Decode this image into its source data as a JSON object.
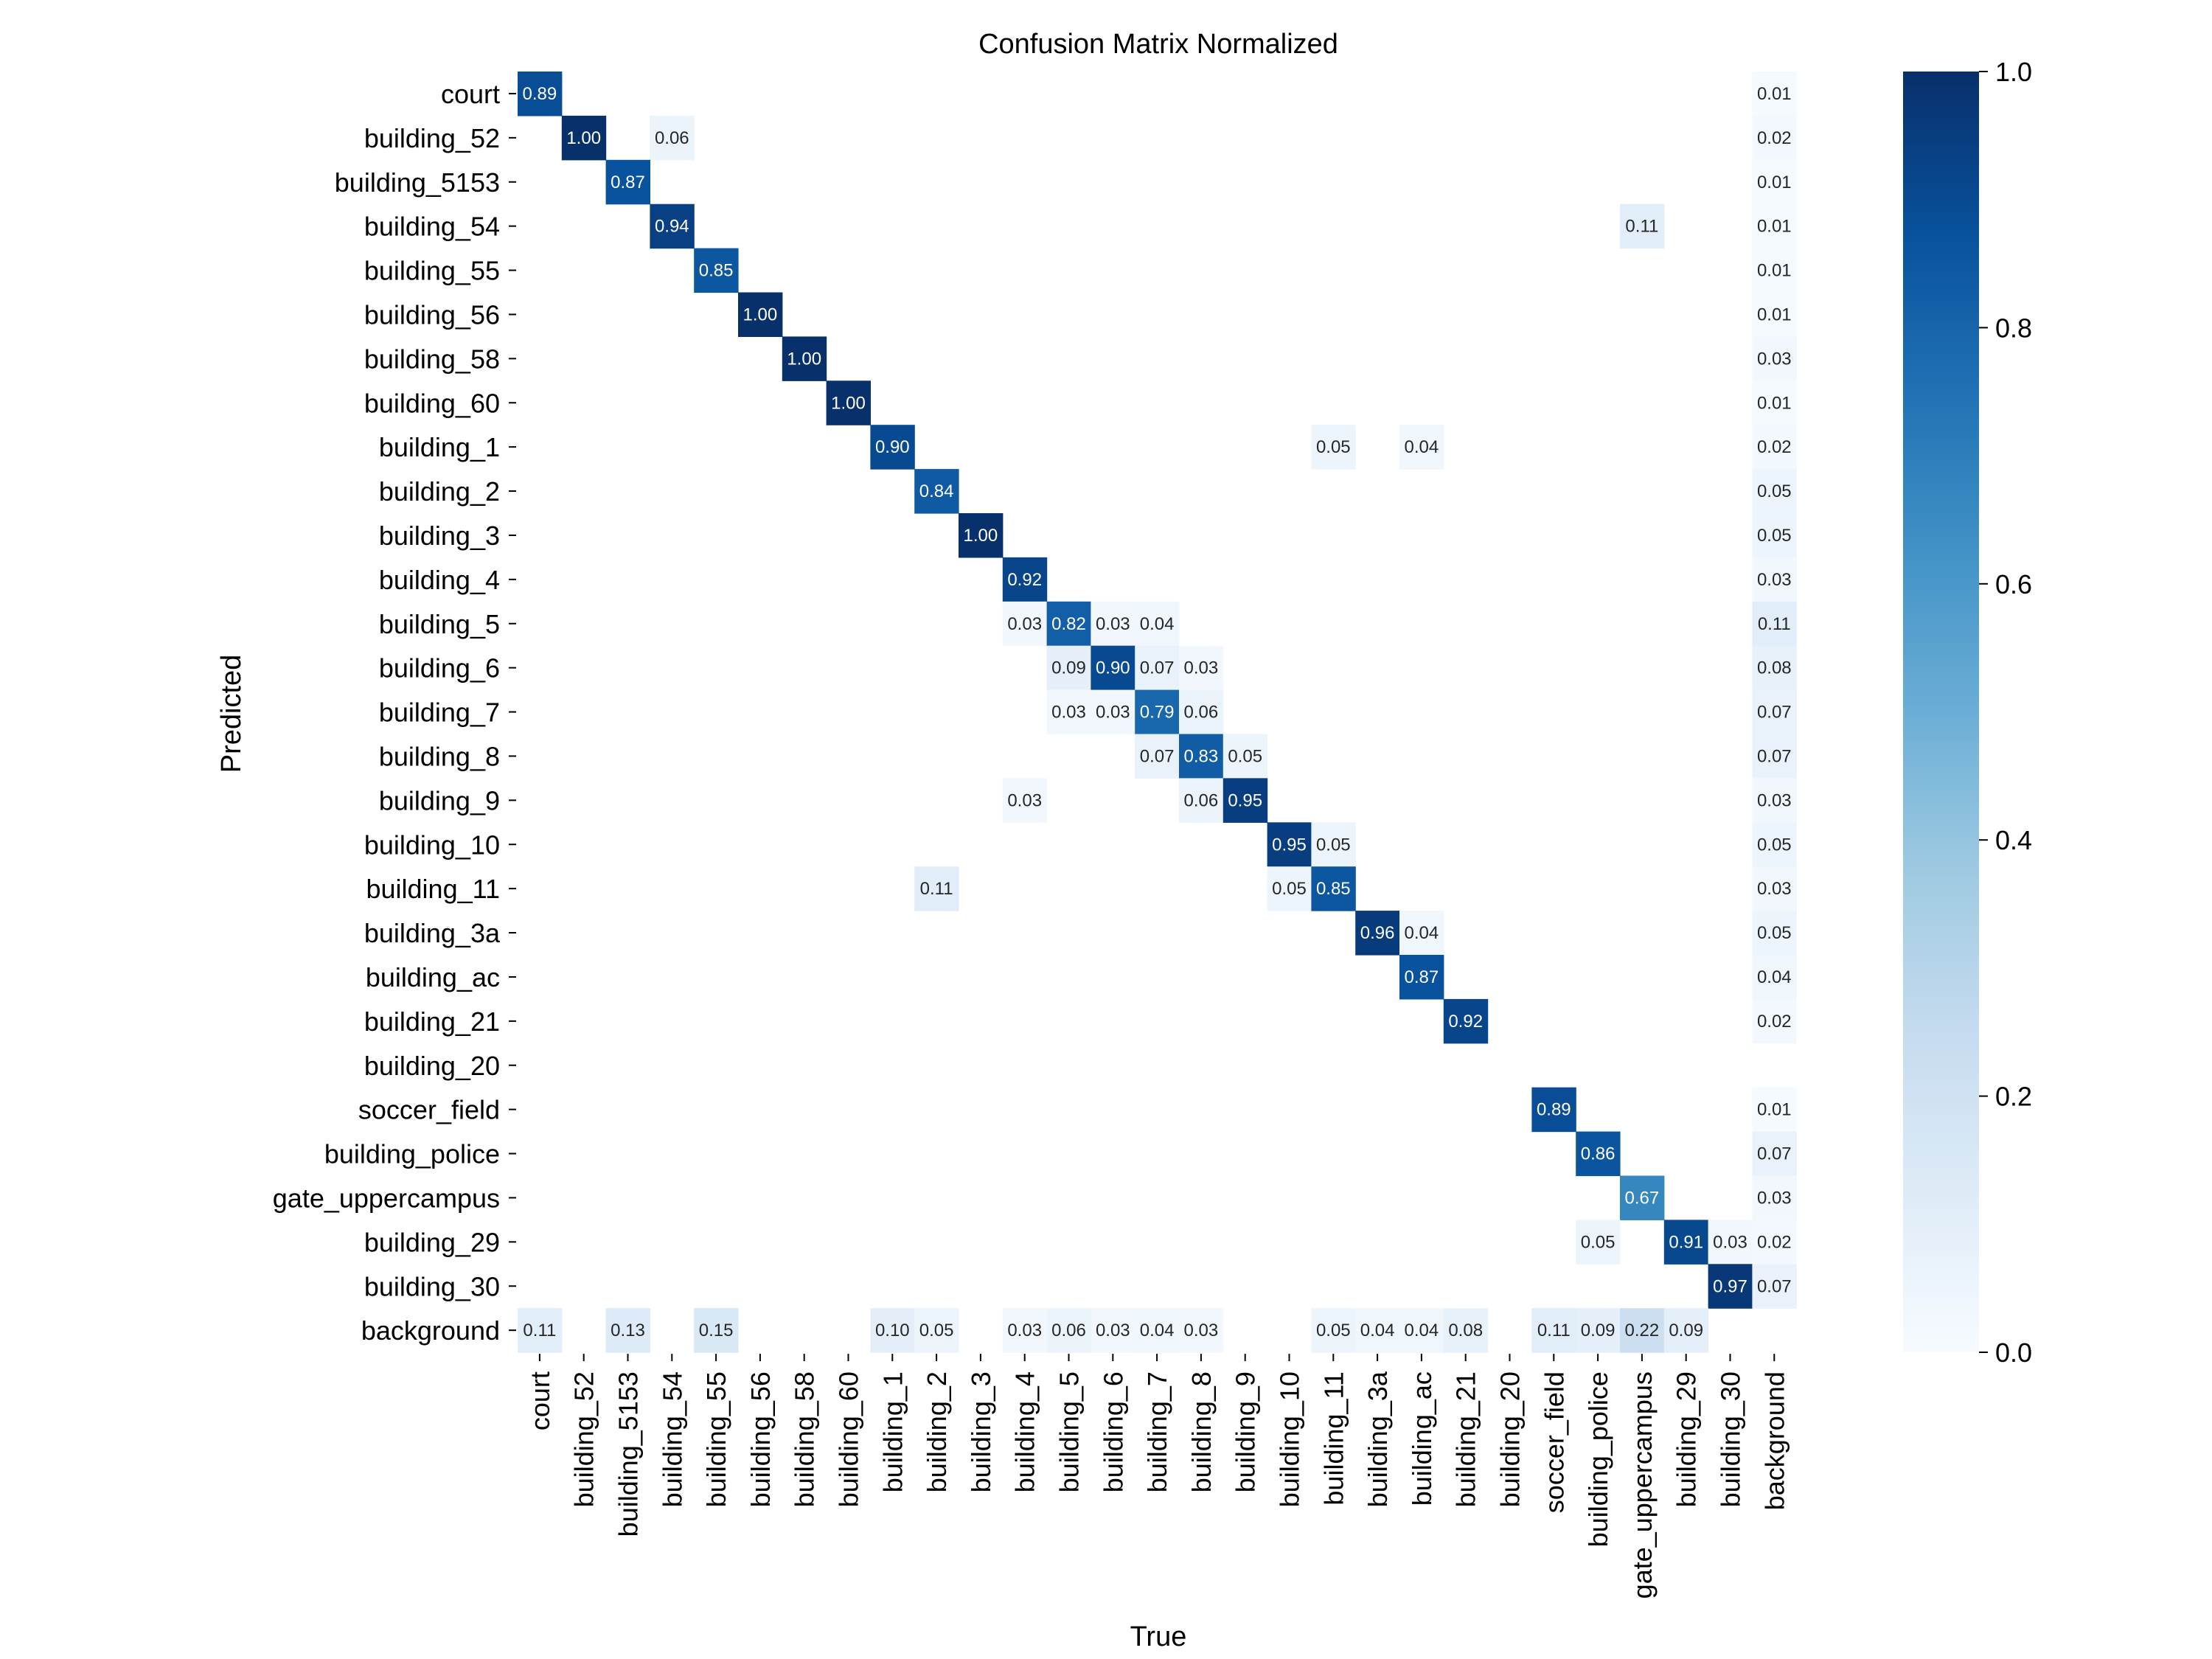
{
  "chart_data": {
    "type": "heatmap",
    "title": "Confusion Matrix Normalized",
    "xlabel": "True",
    "ylabel": "Predicted",
    "labels": [
      "court",
      "building_52",
      "building_5153",
      "building_54",
      "building_55",
      "building_56",
      "building_58",
      "building_60",
      "building_1",
      "building_2",
      "building_3",
      "building_4",
      "building_5",
      "building_6",
      "building_7",
      "building_8",
      "building_9",
      "building_10",
      "building_11",
      "building_3a",
      "building_ac",
      "building_21",
      "building_20",
      "soccer_field",
      "building_police",
      "gate_uppercampus",
      "building_29",
      "building_30",
      "background"
    ],
    "cells": [
      [
        0,
        0,
        0.89
      ],
      [
        0,
        28,
        0.01
      ],
      [
        1,
        1,
        1.0
      ],
      [
        1,
        3,
        0.06
      ],
      [
        1,
        28,
        0.02
      ],
      [
        2,
        2,
        0.87
      ],
      [
        2,
        28,
        0.01
      ],
      [
        3,
        3,
        0.94
      ],
      [
        3,
        25,
        0.11
      ],
      [
        3,
        28,
        0.01
      ],
      [
        4,
        4,
        0.85
      ],
      [
        4,
        28,
        0.01
      ],
      [
        5,
        5,
        1.0
      ],
      [
        5,
        28,
        0.01
      ],
      [
        6,
        6,
        1.0
      ],
      [
        6,
        28,
        0.03
      ],
      [
        7,
        7,
        1.0
      ],
      [
        7,
        28,
        0.01
      ],
      [
        8,
        8,
        0.9
      ],
      [
        8,
        18,
        0.05
      ],
      [
        8,
        20,
        0.04
      ],
      [
        8,
        28,
        0.02
      ],
      [
        9,
        9,
        0.84
      ],
      [
        9,
        28,
        0.05
      ],
      [
        10,
        10,
        1.0
      ],
      [
        10,
        28,
        0.05
      ],
      [
        11,
        11,
        0.92
      ],
      [
        11,
        28,
        0.03
      ],
      [
        12,
        11,
        0.03
      ],
      [
        12,
        12,
        0.82
      ],
      [
        12,
        13,
        0.03
      ],
      [
        12,
        14,
        0.04
      ],
      [
        12,
        28,
        0.11
      ],
      [
        13,
        12,
        0.09
      ],
      [
        13,
        13,
        0.9
      ],
      [
        13,
        14,
        0.07
      ],
      [
        13,
        15,
        0.03
      ],
      [
        13,
        28,
        0.08
      ],
      [
        14,
        12,
        0.03
      ],
      [
        14,
        13,
        0.03
      ],
      [
        14,
        14,
        0.79
      ],
      [
        14,
        15,
        0.06
      ],
      [
        14,
        28,
        0.07
      ],
      [
        15,
        14,
        0.07
      ],
      [
        15,
        15,
        0.83
      ],
      [
        15,
        16,
        0.05
      ],
      [
        15,
        28,
        0.07
      ],
      [
        16,
        11,
        0.03
      ],
      [
        16,
        15,
        0.06
      ],
      [
        16,
        16,
        0.95
      ],
      [
        16,
        28,
        0.03
      ],
      [
        17,
        17,
        0.95
      ],
      [
        17,
        18,
        0.05
      ],
      [
        17,
        28,
        0.05
      ],
      [
        18,
        9,
        0.11
      ],
      [
        18,
        17,
        0.05
      ],
      [
        18,
        18,
        0.85
      ],
      [
        18,
        28,
        0.03
      ],
      [
        19,
        19,
        0.96
      ],
      [
        19,
        20,
        0.04
      ],
      [
        19,
        28,
        0.05
      ],
      [
        20,
        20,
        0.87
      ],
      [
        20,
        28,
        0.04
      ],
      [
        21,
        21,
        0.92
      ],
      [
        21,
        28,
        0.02
      ],
      [
        23,
        23,
        0.89
      ],
      [
        23,
        28,
        0.01
      ],
      [
        24,
        24,
        0.86
      ],
      [
        24,
        28,
        0.07
      ],
      [
        25,
        25,
        0.67
      ],
      [
        25,
        28,
        0.03
      ],
      [
        26,
        24,
        0.05
      ],
      [
        26,
        26,
        0.91
      ],
      [
        26,
        27,
        0.03
      ],
      [
        26,
        28,
        0.02
      ],
      [
        27,
        27,
        0.97
      ],
      [
        27,
        28,
        0.07
      ],
      [
        28,
        0,
        0.11
      ],
      [
        28,
        2,
        0.13
      ],
      [
        28,
        4,
        0.15
      ],
      [
        28,
        8,
        0.1
      ],
      [
        28,
        9,
        0.05
      ],
      [
        28,
        11,
        0.03
      ],
      [
        28,
        12,
        0.06
      ],
      [
        28,
        13,
        0.03
      ],
      [
        28,
        14,
        0.04
      ],
      [
        28,
        15,
        0.03
      ],
      [
        28,
        18,
        0.05
      ],
      [
        28,
        19,
        0.04
      ],
      [
        28,
        20,
        0.04
      ],
      [
        28,
        21,
        0.08
      ],
      [
        28,
        23,
        0.11
      ],
      [
        28,
        24,
        0.09
      ],
      [
        28,
        25,
        0.22
      ],
      [
        28,
        26,
        0.09
      ]
    ],
    "value_format": "2 decimals",
    "colorbar": {
      "range": [
        0.0,
        1.0
      ],
      "ticks": [
        "0.0",
        "0.2",
        "0.4",
        "0.6",
        "0.8",
        "1.0"
      ],
      "colormap": "Blues",
      "position": "right"
    }
  }
}
